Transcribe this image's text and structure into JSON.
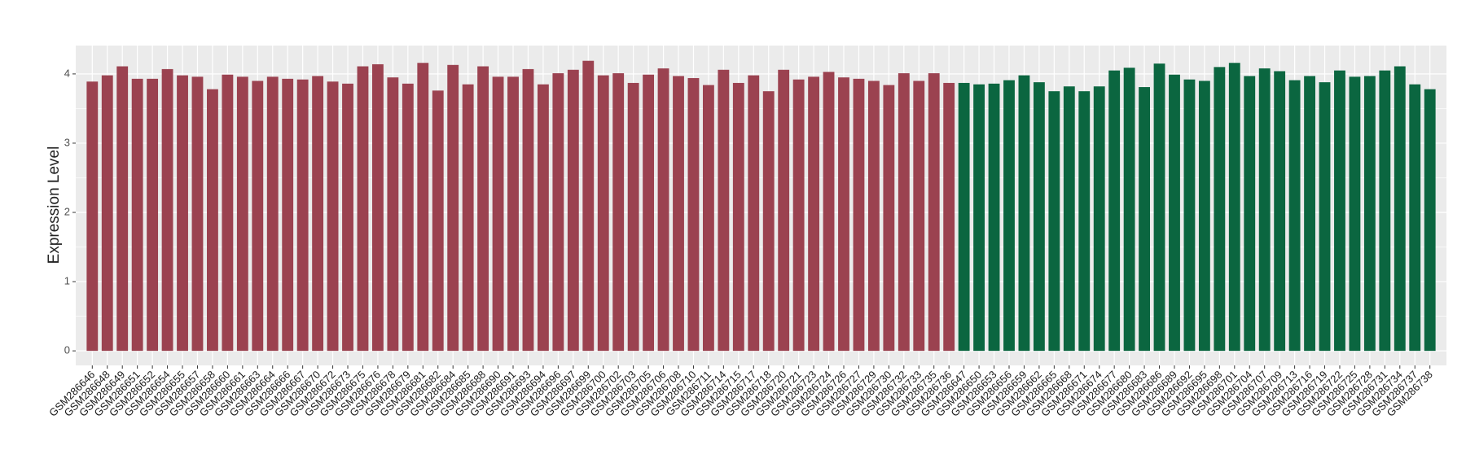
{
  "chart_data": {
    "type": "bar",
    "y_label": "Expression Level",
    "categories": [
      "GSM286646",
      "GSM286648",
      "GSM286649",
      "GSM286651",
      "GSM286652",
      "GSM286654",
      "GSM286655",
      "GSM286657",
      "GSM286658",
      "GSM286660",
      "GSM286661",
      "GSM286663",
      "GSM286664",
      "GSM286666",
      "GSM286667",
      "GSM286670",
      "GSM286672",
      "GSM286673",
      "GSM286675",
      "GSM286676",
      "GSM286678",
      "GSM286679",
      "GSM286681",
      "GSM286682",
      "GSM286684",
      "GSM286685",
      "GSM286688",
      "GSM286690",
      "GSM286691",
      "GSM286693",
      "GSM286694",
      "GSM286696",
      "GSM286697",
      "GSM286699",
      "GSM286700",
      "GSM286702",
      "GSM286703",
      "GSM286705",
      "GSM286706",
      "GSM286708",
      "GSM286710",
      "GSM286711",
      "GSM286714",
      "GSM286715",
      "GSM286717",
      "GSM286718",
      "GSM286720",
      "GSM286721",
      "GSM286723",
      "GSM286724",
      "GSM286726",
      "GSM286727",
      "GSM286729",
      "GSM286730",
      "GSM286732",
      "GSM286733",
      "GSM286735",
      "GSM286736",
      "GSM286647",
      "GSM286650",
      "GSM286653",
      "GSM286656",
      "GSM286659",
      "GSM286662",
      "GSM286665",
      "GSM286668",
      "GSM286671",
      "GSM286674",
      "GSM286677",
      "GSM286680",
      "GSM286683",
      "GSM286686",
      "GSM286689",
      "GSM286692",
      "GSM286695",
      "GSM286698",
      "GSM286701",
      "GSM286704",
      "GSM286707",
      "GSM286709",
      "GSM286713",
      "GSM286716",
      "GSM286719",
      "GSM286722",
      "GSM286725",
      "GSM286728",
      "GSM286731",
      "GSM286734",
      "GSM286737",
      "GSM286738"
    ],
    "values": [
      3.89,
      3.98,
      4.11,
      3.93,
      3.93,
      4.07,
      3.98,
      3.96,
      3.78,
      3.99,
      3.96,
      3.9,
      3.96,
      3.93,
      3.92,
      3.97,
      3.89,
      3.86,
      4.11,
      4.14,
      3.95,
      3.86,
      4.16,
      3.76,
      4.13,
      3.85,
      4.11,
      3.96,
      3.96,
      4.07,
      3.85,
      4.01,
      4.06,
      4.19,
      3.98,
      4.01,
      3.87,
      3.99,
      4.08,
      3.97,
      3.94,
      3.84,
      4.06,
      3.87,
      3.98,
      3.75,
      4.06,
      3.92,
      3.96,
      4.03,
      3.95,
      3.93,
      3.9,
      3.84,
      4.01,
      3.9,
      4.01,
      3.87,
      3.87,
      3.85,
      3.86,
      3.91,
      3.98,
      3.88,
      3.75,
      3.82,
      3.75,
      3.82,
      4.05,
      4.09,
      3.81,
      4.15,
      3.99,
      3.92,
      3.9,
      4.1,
      4.16,
      3.97,
      4.08,
      4.04,
      3.91,
      3.97,
      3.88,
      4.05,
      3.96,
      3.97,
      4.05,
      4.11,
      3.85,
      3.78
    ],
    "bar_colors": [
      "#9b4250",
      "#9b4250",
      "#9b4250",
      "#9b4250",
      "#9b4250",
      "#9b4250",
      "#9b4250",
      "#9b4250",
      "#9b4250",
      "#9b4250",
      "#9b4250",
      "#9b4250",
      "#9b4250",
      "#9b4250",
      "#9b4250",
      "#9b4250",
      "#9b4250",
      "#9b4250",
      "#9b4250",
      "#9b4250",
      "#9b4250",
      "#9b4250",
      "#9b4250",
      "#9b4250",
      "#9b4250",
      "#9b4250",
      "#9b4250",
      "#9b4250",
      "#9b4250",
      "#9b4250",
      "#9b4250",
      "#9b4250",
      "#9b4250",
      "#9b4250",
      "#9b4250",
      "#9b4250",
      "#9b4250",
      "#9b4250",
      "#9b4250",
      "#9b4250",
      "#9b4250",
      "#9b4250",
      "#9b4250",
      "#9b4250",
      "#9b4250",
      "#9b4250",
      "#9b4250",
      "#9b4250",
      "#9b4250",
      "#9b4250",
      "#9b4250",
      "#9b4250",
      "#9b4250",
      "#9b4250",
      "#9b4250",
      "#9b4250",
      "#9b4250",
      "#9b4250",
      "#0b6640",
      "#0b6640",
      "#0b6640",
      "#0b6640",
      "#0b6640",
      "#0b6640",
      "#0b6640",
      "#0b6640",
      "#0b6640",
      "#0b6640",
      "#0b6640",
      "#0b6640",
      "#0b6640",
      "#0b6640",
      "#0b6640",
      "#0b6640",
      "#0b6640",
      "#0b6640",
      "#0b6640",
      "#0b6640",
      "#0b6640",
      "#0b6640",
      "#0b6640",
      "#0b6640",
      "#0b6640",
      "#0b6640",
      "#0b6640",
      "#0b6640",
      "#0b6640",
      "#0b6640",
      "#0b6640",
      "#0b6640"
    ],
    "ylim": [
      -0.21,
      4.41
    ],
    "yticks": [
      0,
      1,
      2,
      3,
      4
    ],
    "grid": true
  }
}
